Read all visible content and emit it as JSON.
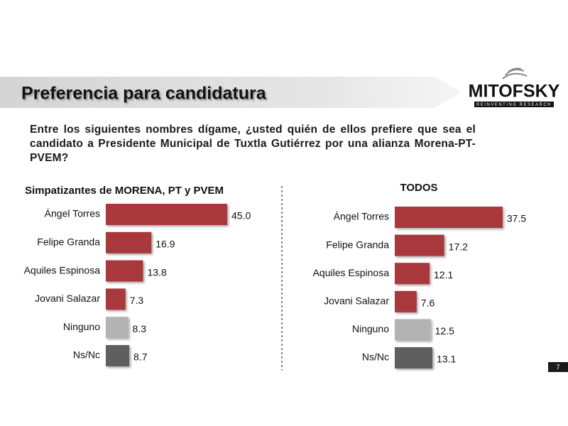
{
  "header": {
    "title": "Preferencia para candidatura",
    "logo": "MITOFSKY",
    "logo_tagline": "REINVENTING RESEARCH"
  },
  "question": "Entre los siguientes nombres dígame, ¿usted quién de ellos prefiere que sea el candidato a Presidente Municipal de Tuxtla Gutiérrez por una alianza Morena-PT-PVEM?",
  "page_number": "7",
  "chart_data": [
    {
      "type": "bar",
      "orientation": "horizontal",
      "title": "Simpatizantes de MORENA, PT y PVEM",
      "categories": [
        "Ángel Torres",
        "Felipe Granda",
        "Aquiles Espinosa",
        "Jovani Salazar",
        "Ninguno",
        "Ns/Nc"
      ],
      "values": [
        45.0,
        16.9,
        13.8,
        7.3,
        8.3,
        8.7
      ],
      "value_labels": [
        "45.0",
        "16.9",
        "13.8",
        "7.3",
        "8.3",
        "8.7"
      ],
      "colors": [
        "#a8373a",
        "#a8373a",
        "#a8373a",
        "#a8373a",
        "#b3b3b3",
        "#5f5f5f"
      ]
    },
    {
      "type": "bar",
      "orientation": "horizontal",
      "title": "TODOS",
      "categories": [
        "Ángel Torres",
        "Felipe Granda",
        "Aquiles Espinosa",
        "Jovani Salazar",
        "Ninguno",
        "Ns/Nc"
      ],
      "values": [
        37.5,
        17.2,
        12.1,
        7.6,
        12.5,
        13.1
      ],
      "value_labels": [
        "37.5",
        "17.2",
        "12.1",
        "7.6",
        "12.5",
        "13.1"
      ],
      "colors": [
        "#a8373a",
        "#a8373a",
        "#a8373a",
        "#a8373a",
        "#b3b3b3",
        "#5f5f5f"
      ]
    }
  ]
}
